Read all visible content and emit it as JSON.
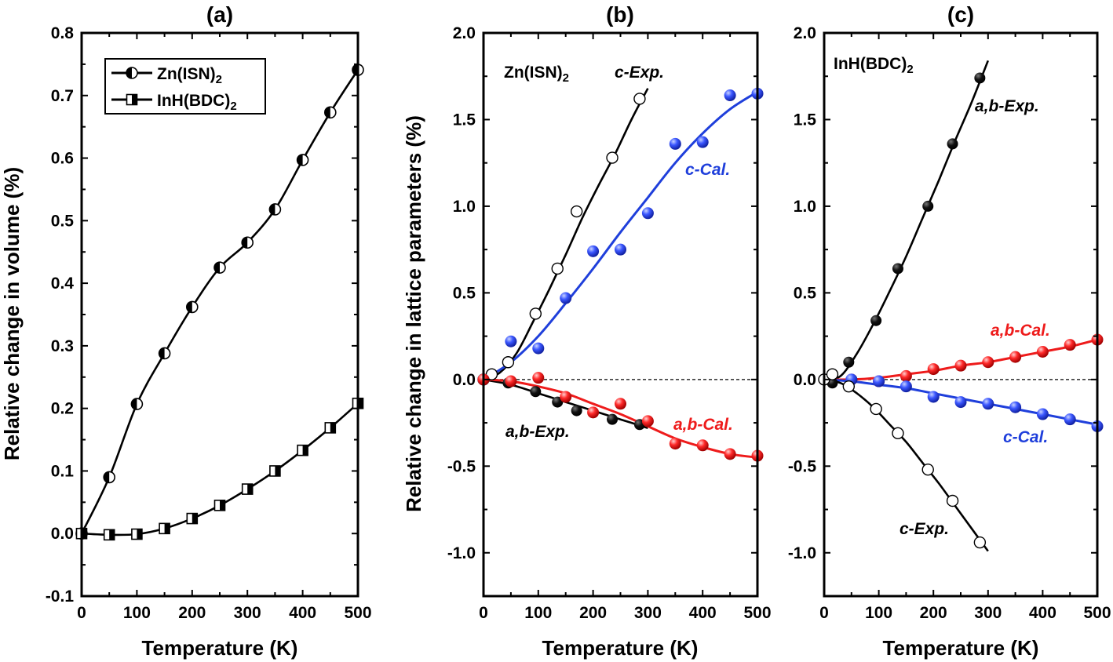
{
  "chart_data": [
    {
      "panel": "(a)",
      "type": "line",
      "xlabel": "Temperature (K)",
      "ylabel": "Relative change in volume (%)",
      "xlim": [
        0,
        500
      ],
      "ylim": [
        -0.1,
        0.8
      ],
      "xticks": [
        0,
        100,
        200,
        300,
        400,
        500
      ],
      "yticks": [
        -0.1,
        0.0,
        0.1,
        0.2,
        0.3,
        0.4,
        0.5,
        0.6,
        0.7,
        0.8
      ],
      "ytick_labels": [
        "-0.1",
        "0.0",
        "0.1",
        "0.2",
        "0.3",
        "0.4",
        "0.5",
        "0.6",
        "0.7",
        "0.8"
      ],
      "legend_position": "top-left",
      "series": [
        {
          "name": "Zn(ISN)",
          "name_sub": "2",
          "marker": "circle-half",
          "color": "#000000",
          "x": [
            0,
            50,
            100,
            150,
            200,
            250,
            300,
            350,
            400,
            450,
            500
          ],
          "y": [
            0.0,
            0.09,
            0.207,
            0.288,
            0.362,
            0.425,
            0.465,
            0.518,
            0.597,
            0.673,
            0.741
          ]
        },
        {
          "name": "InH(BDC)",
          "name_sub": "2",
          "marker": "square-half",
          "color": "#000000",
          "x": [
            0,
            50,
            100,
            150,
            200,
            250,
            300,
            350,
            400,
            450,
            500
          ],
          "y": [
            0.0,
            -0.002,
            -0.001,
            0.008,
            0.024,
            0.045,
            0.071,
            0.1,
            0.133,
            0.169,
            0.208
          ]
        }
      ]
    },
    {
      "panel": "(b)",
      "type": "scatter",
      "xlabel": "Temperature (K)",
      "ylabel": "Relative change in lattice parameters (%)",
      "xlim": [
        0,
        500
      ],
      "ylim": [
        -1.25,
        2.0
      ],
      "xticks": [
        0,
        100,
        200,
        300,
        400,
        500
      ],
      "yticks": [
        -1.0,
        -0.5,
        0.0,
        0.5,
        1.0,
        1.5,
        2.0
      ],
      "ytick_labels": [
        "-1.0",
        "-0.5",
        "0.0",
        "0.5",
        "1.0",
        "1.5",
        "2.0"
      ],
      "compound": "Zn(ISN)",
      "compound_sub": "2",
      "zero_line": true,
      "series": [
        {
          "name": "c-Exp.",
          "marker": "open-circle",
          "color": "#000000",
          "x": [
            0,
            15,
            45,
            95,
            135,
            170,
            235,
            285
          ],
          "y": [
            0.0,
            0.03,
            0.1,
            0.38,
            0.64,
            0.97,
            1.28,
            1.62
          ],
          "fit_x": [
            0,
            30,
            60,
            90,
            120,
            150,
            180,
            210,
            240,
            270,
            300
          ],
          "fit_y": [
            0.0,
            0.04,
            0.15,
            0.33,
            0.52,
            0.72,
            0.93,
            1.12,
            1.3,
            1.5,
            1.68
          ]
        },
        {
          "name": "c-Cal.",
          "marker": "blue-sphere",
          "color": "#1f3fdb",
          "x": [
            0,
            50,
            100,
            150,
            200,
            250,
            300,
            350,
            400,
            450,
            500
          ],
          "y": [
            0.0,
            0.22,
            0.18,
            0.47,
            0.74,
            0.75,
            0.96,
            1.36,
            1.37,
            1.64,
            1.65
          ],
          "fit_x": [
            0,
            50,
            100,
            150,
            200,
            250,
            300,
            350,
            400,
            450,
            500
          ],
          "fit_y": [
            0.0,
            0.1,
            0.25,
            0.44,
            0.64,
            0.85,
            1.05,
            1.25,
            1.42,
            1.56,
            1.66
          ]
        },
        {
          "name": "a,b-Exp.",
          "marker": "filled-circle",
          "color": "#000000",
          "x": [
            0,
            45,
            95,
            135,
            170,
            235,
            285
          ],
          "y": [
            0.0,
            -0.02,
            -0.07,
            -0.13,
            -0.18,
            -0.23,
            -0.26
          ],
          "fit_x": [
            0,
            50,
            100,
            150,
            200,
            250,
            300
          ],
          "fit_y": [
            0.0,
            -0.03,
            -0.08,
            -0.13,
            -0.18,
            -0.23,
            -0.28
          ]
        },
        {
          "name": "a,b-Cal.",
          "marker": "red-sphere",
          "color": "#ee1b1b",
          "x": [
            0,
            50,
            100,
            150,
            200,
            250,
            300,
            350,
            400,
            450,
            500
          ],
          "y": [
            0.0,
            -0.01,
            0.01,
            -0.1,
            -0.19,
            -0.14,
            -0.24,
            -0.37,
            -0.38,
            -0.43,
            -0.44
          ],
          "fit_x": [
            0,
            50,
            100,
            150,
            200,
            250,
            300,
            350,
            400,
            450,
            500
          ],
          "fit_y": [
            0.0,
            -0.01,
            -0.04,
            -0.08,
            -0.14,
            -0.2,
            -0.27,
            -0.34,
            -0.39,
            -0.43,
            -0.45
          ]
        }
      ]
    },
    {
      "panel": "(c)",
      "type": "scatter",
      "xlabel": "Temperature (K)",
      "ylabel": "",
      "xlim": [
        0,
        500
      ],
      "ylim": [
        -1.25,
        2.0
      ],
      "xticks": [
        0,
        100,
        200,
        300,
        400,
        500
      ],
      "yticks": [
        -1.0,
        -0.5,
        0.0,
        0.5,
        1.0,
        1.5,
        2.0
      ],
      "ytick_labels": [
        "-1.0",
        "-0.5",
        "0.0",
        "0.5",
        "1.0",
        "1.5",
        "2.0"
      ],
      "compound": "InH(BDC)",
      "compound_sub": "2",
      "zero_line": true,
      "series": [
        {
          "name": "a,b-Exp.",
          "marker": "filled-circle",
          "color": "#000000",
          "x": [
            0,
            15,
            45,
            95,
            135,
            190,
            235,
            285
          ],
          "y": [
            0.0,
            -0.02,
            0.1,
            0.34,
            0.64,
            1.0,
            1.36,
            1.74
          ],
          "fit_x": [
            0,
            30,
            60,
            90,
            120,
            150,
            180,
            210,
            240,
            270,
            300
          ],
          "fit_y": [
            0.0,
            0.02,
            0.15,
            0.32,
            0.51,
            0.71,
            0.93,
            1.15,
            1.38,
            1.6,
            1.84
          ]
        },
        {
          "name": "a,b-Cal.",
          "marker": "red-sphere",
          "color": "#ee1b1b",
          "x": [
            0,
            50,
            100,
            150,
            200,
            250,
            300,
            350,
            400,
            450,
            500
          ],
          "y": [
            0.0,
            0.0,
            -0.01,
            0.02,
            0.06,
            0.08,
            0.1,
            0.13,
            0.16,
            0.2,
            0.23
          ],
          "fit_x": [
            0,
            50,
            100,
            150,
            200,
            250,
            300,
            350,
            400,
            450,
            500
          ],
          "fit_y": [
            0.0,
            0.0,
            0.01,
            0.03,
            0.05,
            0.08,
            0.1,
            0.13,
            0.16,
            0.19,
            0.23
          ]
        },
        {
          "name": "c-Cal.",
          "marker": "blue-sphere",
          "color": "#1f3fdb",
          "x": [
            0,
            50,
            100,
            150,
            200,
            250,
            300,
            350,
            400,
            450,
            500
          ],
          "y": [
            0.0,
            0.0,
            -0.01,
            -0.04,
            -0.1,
            -0.13,
            -0.14,
            -0.16,
            -0.2,
            -0.23,
            -0.27
          ],
          "fit_x": [
            0,
            50,
            100,
            150,
            200,
            250,
            300,
            350,
            400,
            450,
            500
          ],
          "fit_y": [
            0.0,
            -0.01,
            -0.03,
            -0.05,
            -0.08,
            -0.11,
            -0.14,
            -0.17,
            -0.2,
            -0.23,
            -0.26
          ]
        },
        {
          "name": "c-Exp.",
          "marker": "open-circle",
          "color": "#000000",
          "x": [
            0,
            15,
            45,
            95,
            135,
            190,
            235,
            285
          ],
          "y": [
            0.0,
            0.03,
            -0.04,
            -0.17,
            -0.31,
            -0.52,
            -0.7,
            -0.94
          ],
          "fit_x": [
            0,
            30,
            60,
            90,
            120,
            150,
            180,
            210,
            240,
            270,
            300
          ],
          "fit_y": [
            0.0,
            -0.02,
            -0.08,
            -0.16,
            -0.26,
            -0.36,
            -0.48,
            -0.6,
            -0.73,
            -0.86,
            -0.99
          ]
        }
      ]
    }
  ]
}
